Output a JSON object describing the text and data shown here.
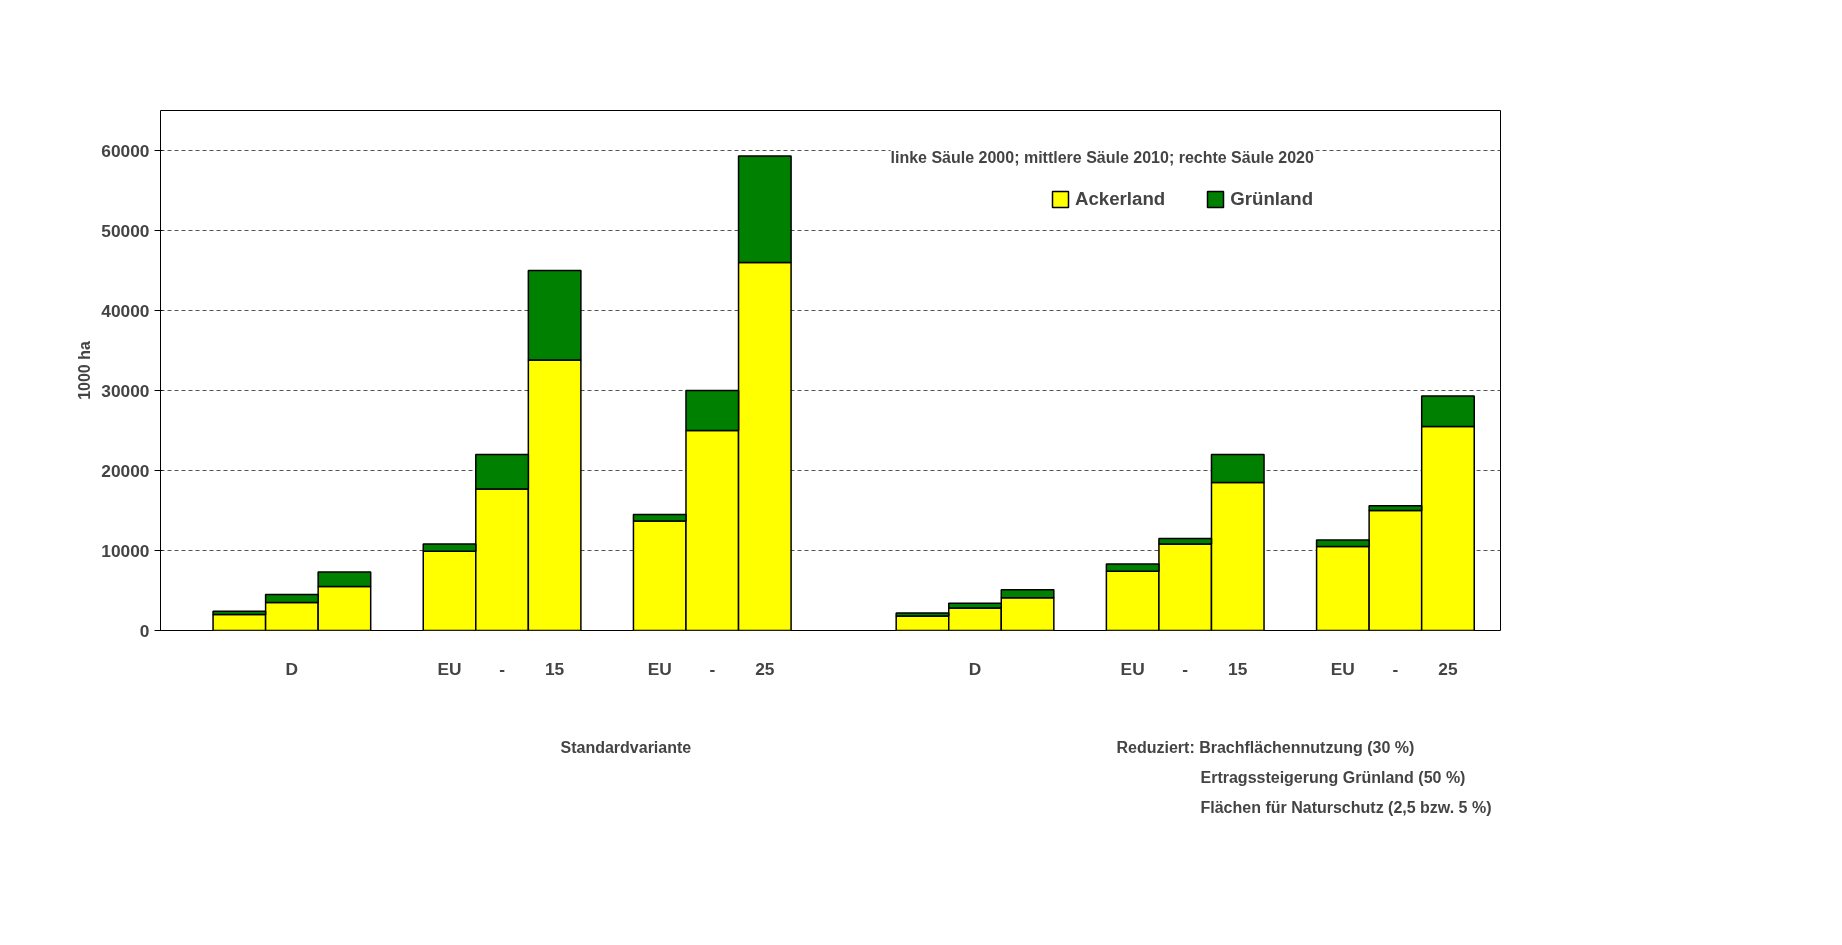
{
  "chart_data": {
    "type": "bar",
    "stacked": true,
    "ylabel": "1000 ha",
    "subtitle": "linke Säule 2000; mittlere Säule 2010; rechte Säule 2020",
    "categories": [
      null,
      "D",
      null,
      "EU",
      "-",
      "15",
      "EU",
      "-",
      "25",
      null,
      "D",
      null,
      "EU",
      "-",
      "15",
      "EU",
      "-",
      "25"
    ],
    "series": [
      {
        "name": "Ackerland",
        "color": "#ffff00",
        "values": [
          2000,
          3500,
          5500,
          9900,
          17700,
          33800,
          13700,
          25000,
          46000,
          1800,
          2800,
          4100,
          7400,
          10800,
          18500,
          10500,
          15000,
          25500
        ]
      },
      {
        "name": "Grünland",
        "color": "#008000",
        "values": [
          400,
          1000,
          1800,
          900,
          4300,
          11200,
          800,
          5000,
          13300,
          400,
          600,
          1000,
          900,
          700,
          3500,
          800,
          600,
          3800
        ]
      }
    ],
    "ylim": [
      0,
      65000
    ],
    "yticks": [
      0,
      10000,
      20000,
      30000,
      40000,
      50000,
      60000
    ],
    "grid": "y",
    "legend": "top right",
    "annotations": [
      "Standardvariante",
      "Reduziert: Brachflächennutzung (30 %)",
      "Ertragssteigerung Grünland (50 %)",
      "Flächen für Naturschutz (2,5 bzw. 5 %)"
    ]
  }
}
